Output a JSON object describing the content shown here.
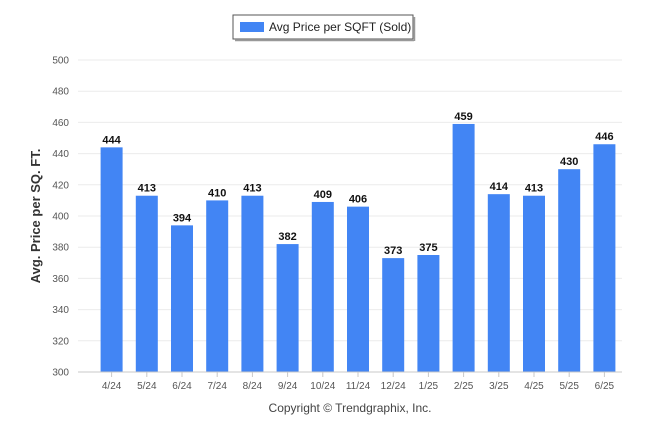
{
  "chart_data": {
    "type": "bar",
    "categories": [
      "4/24",
      "5/24",
      "6/24",
      "7/24",
      "8/24",
      "9/24",
      "10/24",
      "11/24",
      "12/24",
      "1/25",
      "2/25",
      "3/25",
      "4/25",
      "5/25",
      "6/25"
    ],
    "series": [
      {
        "name": "Avg Price per SQFT (Sold)",
        "values": [
          444,
          413,
          394,
          410,
          413,
          382,
          409,
          406,
          373,
          375,
          459,
          414,
          413,
          430,
          446
        ],
        "color": "#4285f4"
      }
    ],
    "title": "",
    "xlabel": "",
    "ylabel": "Avg. Price per SQ. FT.",
    "ylim": [
      300,
      500
    ],
    "yticks": [
      300,
      320,
      340,
      360,
      380,
      400,
      420,
      440,
      460,
      480,
      500
    ],
    "grid": true,
    "legend_position": "top-center",
    "data_labels": true
  },
  "footer": {
    "copyright": "Copyright © Trendgraphix, Inc."
  }
}
